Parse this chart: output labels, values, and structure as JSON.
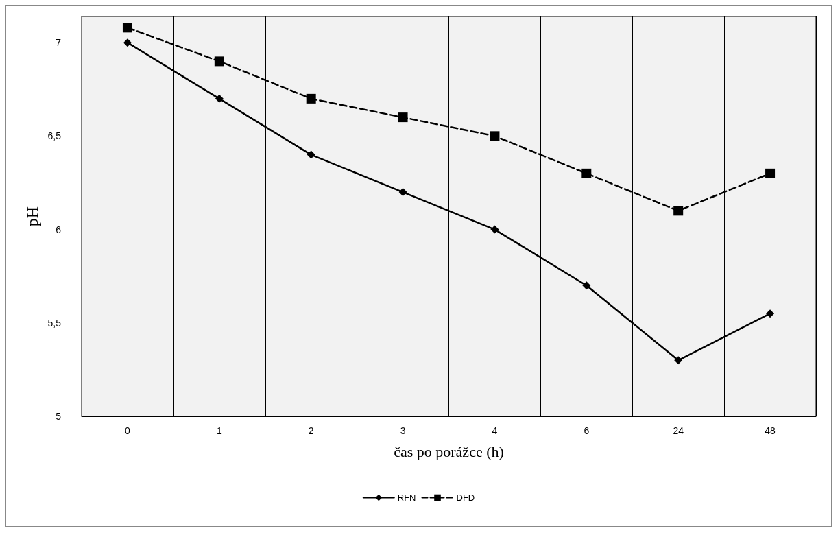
{
  "chart_data": {
    "type": "line",
    "xlabel": "čas po porážce (h)",
    "ylabel": "pH",
    "categories": [
      "0",
      "1",
      "2",
      "3",
      "4",
      "6",
      "24",
      "48"
    ],
    "series": [
      {
        "name": "RFN",
        "color": "#000000",
        "marker": "diamond",
        "line_style": "solid",
        "values": [
          7,
          6.7,
          6.4,
          6.2,
          6.0,
          5.7,
          5.3,
          5.55
        ]
      },
      {
        "name": "DFD",
        "color": "#000000",
        "marker": "square",
        "line_style": "dashed",
        "values": [
          7.08,
          6.9,
          6.7,
          6.6,
          6.5,
          6.3,
          6.1,
          6.3
        ]
      }
    ],
    "ylim": [
      5,
      7.14
    ],
    "yticks": [
      5,
      {
        "value": 5.5,
        "label": "5,5"
      },
      6,
      {
        "value": 6.5,
        "label": "6,5"
      },
      7
    ],
    "grid": "x",
    "legend": "bottom"
  }
}
